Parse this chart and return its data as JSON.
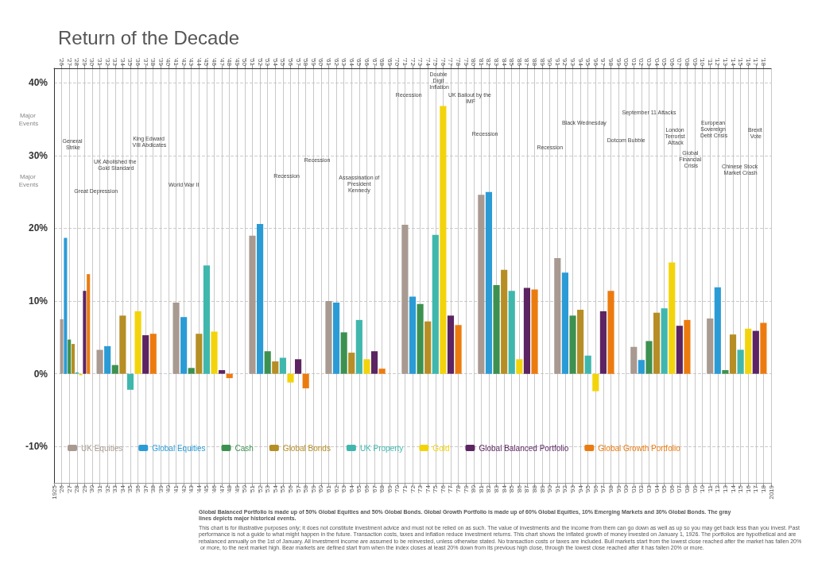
{
  "chart_data": {
    "type": "bar",
    "title": "Return of the Decade",
    "xlim": [
      1925,
      2019
    ],
    "ylim": [
      -15,
      42
    ],
    "yticks": [
      {
        "value": -10,
        "label": "-10%"
      },
      {
        "value": 0,
        "label": "0%"
      },
      {
        "value": 10,
        "label": "10%"
      },
      {
        "value": 20,
        "label": "20%"
      },
      {
        "value": 30,
        "label": "30%"
      },
      {
        "value": 40,
        "label": "40%"
      }
    ],
    "xticks": [
      {
        "value": 1925,
        "label": "1925"
      },
      {
        "value": 1926,
        "label": "'26"
      },
      {
        "value": 1927,
        "label": "'27"
      },
      {
        "value": 1928,
        "label": "'28"
      },
      {
        "value": 1929,
        "label": "'29"
      },
      {
        "value": 1930,
        "label": "'30"
      },
      {
        "value": 1931,
        "label": "'31"
      },
      {
        "value": 1932,
        "label": "'32"
      },
      {
        "value": 1933,
        "label": "'33"
      },
      {
        "value": 1934,
        "label": "'34"
      },
      {
        "value": 1935,
        "label": "'35"
      },
      {
        "value": 1936,
        "label": "'36"
      },
      {
        "value": 1937,
        "label": "'37"
      },
      {
        "value": 1938,
        "label": "'38"
      },
      {
        "value": 1939,
        "label": "'39"
      },
      {
        "value": 1940,
        "label": "'40"
      },
      {
        "value": 1941,
        "label": "'41"
      },
      {
        "value": 1942,
        "label": "'42"
      },
      {
        "value": 1943,
        "label": "'43"
      },
      {
        "value": 1944,
        "label": "'44"
      },
      {
        "value": 1945,
        "label": "'45"
      },
      {
        "value": 1946,
        "label": "'46"
      },
      {
        "value": 1947,
        "label": "'47"
      },
      {
        "value": 1948,
        "label": "'48"
      },
      {
        "value": 1949,
        "label": "'49"
      },
      {
        "value": 1950,
        "label": "'50"
      },
      {
        "value": 1951,
        "label": "'51"
      },
      {
        "value": 1952,
        "label": "'52"
      },
      {
        "value": 1953,
        "label": "'53"
      },
      {
        "value": 1954,
        "label": "'54"
      },
      {
        "value": 1955,
        "label": "'55"
      },
      {
        "value": 1956,
        "label": "'56"
      },
      {
        "value": 1957,
        "label": "'57"
      },
      {
        "value": 1958,
        "label": "'58"
      },
      {
        "value": 1959,
        "label": "'59"
      },
      {
        "value": 1960,
        "label": "'60"
      },
      {
        "value": 1961,
        "label": "'61"
      },
      {
        "value": 1962,
        "label": "'62"
      },
      {
        "value": 1963,
        "label": "'63"
      },
      {
        "value": 1964,
        "label": "'64"
      },
      {
        "value": 1965,
        "label": "'65"
      },
      {
        "value": 1966,
        "label": "'66"
      },
      {
        "value": 1967,
        "label": "'67"
      },
      {
        "value": 1968,
        "label": "'68"
      },
      {
        "value": 1969,
        "label": "'69"
      },
      {
        "value": 1970,
        "label": "'70"
      },
      {
        "value": 1971,
        "label": "'71"
      },
      {
        "value": 1972,
        "label": "'72"
      },
      {
        "value": 1973,
        "label": "'73"
      },
      {
        "value": 1974,
        "label": "'74"
      },
      {
        "value": 1975,
        "label": "'75"
      },
      {
        "value": 1976,
        "label": "'76"
      },
      {
        "value": 1977,
        "label": "'77"
      },
      {
        "value": 1978,
        "label": "'78"
      },
      {
        "value": 1979,
        "label": "'79"
      },
      {
        "value": 1980,
        "label": "'80"
      },
      {
        "value": 1981,
        "label": "'81"
      },
      {
        "value": 1982,
        "label": "'82"
      },
      {
        "value": 1983,
        "label": "'83"
      },
      {
        "value": 1984,
        "label": "'84"
      },
      {
        "value": 1985,
        "label": "'85"
      },
      {
        "value": 1986,
        "label": "'86"
      },
      {
        "value": 1987,
        "label": "'87"
      },
      {
        "value": 1988,
        "label": "'88"
      },
      {
        "value": 1989,
        "label": "'89"
      },
      {
        "value": 1990,
        "label": "'90"
      },
      {
        "value": 1991,
        "label": "'91"
      },
      {
        "value": 1992,
        "label": "'92"
      },
      {
        "value": 1993,
        "label": "'93"
      },
      {
        "value": 1994,
        "label": "'94"
      },
      {
        "value": 1995,
        "label": "'95"
      },
      {
        "value": 1996,
        "label": "'96"
      },
      {
        "value": 1997,
        "label": "'97"
      },
      {
        "value": 1998,
        "label": "'98"
      },
      {
        "value": 1999,
        "label": "'99"
      },
      {
        "value": 2000,
        "label": "'00"
      },
      {
        "value": 2001,
        "label": "'01"
      },
      {
        "value": 2002,
        "label": "'02"
      },
      {
        "value": 2003,
        "label": "'03"
      },
      {
        "value": 2004,
        "label": "'04"
      },
      {
        "value": 2005,
        "label": "'05"
      },
      {
        "value": 2006,
        "label": "'06"
      },
      {
        "value": 2007,
        "label": "'07"
      },
      {
        "value": 2008,
        "label": "'08"
      },
      {
        "value": 2009,
        "label": "'09"
      },
      {
        "value": 2010,
        "label": "'10"
      },
      {
        "value": 2011,
        "label": "'11"
      },
      {
        "value": 2012,
        "label": "'12"
      },
      {
        "value": 2013,
        "label": "'13"
      },
      {
        "value": 2014,
        "label": "'14"
      },
      {
        "value": 2015,
        "label": "'15"
      },
      {
        "value": 2016,
        "label": "'16"
      },
      {
        "value": 2017,
        "label": "'17"
      },
      {
        "value": 2018,
        "label": "'18"
      },
      {
        "value": 2019,
        "label": "2019"
      }
    ],
    "x2lim": [
      1925,
      2019
    ],
    "x2ticks": [
      {
        "value": 1926,
        "label": "'26"
      },
      {
        "value": 1927,
        "label": "'27"
      },
      {
        "value": 1928,
        "label": "'28"
      },
      {
        "value": 1929,
        "label": "'29"
      },
      {
        "value": 1930,
        "label": "'30"
      },
      {
        "value": 1931,
        "label": "'31"
      },
      {
        "value": 1932,
        "label": "'32"
      },
      {
        "value": 1933,
        "label": "'33"
      },
      {
        "value": 1934,
        "label": "'34"
      },
      {
        "value": 1935,
        "label": "'35"
      },
      {
        "value": 1936,
        "label": "'36"
      },
      {
        "value": 1937,
        "label": "'37"
      },
      {
        "value": 1938,
        "label": "'38"
      },
      {
        "value": 1939,
        "label": "'39"
      },
      {
        "value": 1940,
        "label": "'40"
      },
      {
        "value": 1941,
        "label": "'41"
      },
      {
        "value": 1942,
        "label": "'42"
      },
      {
        "value": 1943,
        "label": "'43"
      },
      {
        "value": 1944,
        "label": "'44"
      },
      {
        "value": 1945,
        "label": "'45"
      },
      {
        "value": 1946,
        "label": "'46"
      },
      {
        "value": 1947,
        "label": "'47"
      },
      {
        "value": 1948,
        "label": "'48"
      },
      {
        "value": 1949,
        "label": "'49"
      },
      {
        "value": 1950,
        "label": "'50"
      },
      {
        "value": 1951,
        "label": "'51"
      },
      {
        "value": 1952,
        "label": "'52"
      },
      {
        "value": 1953,
        "label": "'53"
      },
      {
        "value": 1954,
        "label": "'54"
      },
      {
        "value": 1955,
        "label": "'55"
      },
      {
        "value": 1956,
        "label": "'56"
      },
      {
        "value": 1957,
        "label": "'57"
      },
      {
        "value": 1958,
        "label": "'58"
      },
      {
        "value": 1959,
        "label": "'59"
      },
      {
        "value": 1960,
        "label": "'60"
      },
      {
        "value": 1961,
        "label": "'61"
      },
      {
        "value": 1962,
        "label": "'62"
      },
      {
        "value": 1963,
        "label": "'63"
      },
      {
        "value": 1964,
        "label": "'64"
      },
      {
        "value": 1965,
        "label": "'65"
      },
      {
        "value": 1966,
        "label": "'66"
      },
      {
        "value": 1967,
        "label": "'67"
      },
      {
        "value": 1968,
        "label": "'68"
      },
      {
        "value": 1969,
        "label": "'69"
      },
      {
        "value": 1970,
        "label": "'70"
      },
      {
        "value": 1971,
        "label": "'71"
      },
      {
        "value": 1972,
        "label": "'72"
      },
      {
        "value": 1973,
        "label": "'73"
      },
      {
        "value": 1974,
        "label": "'74"
      },
      {
        "value": 1975,
        "label": "'75"
      },
      {
        "value": 1976,
        "label": "'76"
      },
      {
        "value": 1977,
        "label": "'77"
      },
      {
        "value": 1978,
        "label": "'78"
      },
      {
        "value": 1979,
        "label": "'79"
      },
      {
        "value": 1980,
        "label": "'80"
      },
      {
        "value": 1981,
        "label": "'81"
      },
      {
        "value": 1982,
        "label": "'82"
      },
      {
        "value": 1983,
        "label": "'83"
      },
      {
        "value": 1984,
        "label": "'84"
      },
      {
        "value": 1985,
        "label": "'85"
      },
      {
        "value": 1986,
        "label": "'86"
      },
      {
        "value": 1987,
        "label": "'87"
      },
      {
        "value": 1988,
        "label": "'88"
      },
      {
        "value": 1989,
        "label": "'89"
      },
      {
        "value": 1990,
        "label": "'90"
      },
      {
        "value": 1991,
        "label": "'91"
      },
      {
        "value": 1992,
        "label": "'92"
      },
      {
        "value": 1993,
        "label": "'93"
      },
      {
        "value": 1994,
        "label": "'94"
      },
      {
        "value": 1995,
        "label": "'95"
      },
      {
        "value": 1996,
        "label": "'96"
      },
      {
        "value": 1997,
        "label": "'97"
      },
      {
        "value": 1998,
        "label": "'98"
      },
      {
        "value": 1999,
        "label": "'99"
      },
      {
        "value": 2000,
        "label": "'00"
      },
      {
        "value": 2001,
        "label": "'01"
      },
      {
        "value": 2002,
        "label": "'02"
      },
      {
        "value": 2003,
        "label": "'03"
      },
      {
        "value": 2004,
        "label": "'04"
      },
      {
        "value": 2005,
        "label": "'05"
      },
      {
        "value": 2006,
        "label": "'06"
      },
      {
        "value": 2007,
        "label": "'07"
      },
      {
        "value": 2008,
        "label": "'08"
      },
      {
        "value": 2009,
        "label": "'09"
      },
      {
        "value": 2010,
        "label": "'10"
      },
      {
        "value": 2011,
        "label": "'11"
      },
      {
        "value": 2012,
        "label": "'12"
      },
      {
        "value": 2013,
        "label": "'13"
      },
      {
        "value": 2014,
        "label": "'14"
      },
      {
        "value": 2015,
        "label": "'15"
      },
      {
        "value": 2016,
        "label": "'16"
      },
      {
        "value": 2017,
        "label": "'17"
      },
      {
        "value": 2018,
        "label": "'18"
      }
    ],
    "grid": true,
    "legend": "bottom",
    "series": [
      {
        "name": "UK Equities",
        "color": "#a89a91",
        "x": [
          1926,
          1931,
          1941,
          1951,
          1961,
          1971,
          1981,
          1991,
          2001,
          2011
        ],
        "values": [
          7.5,
          3.3,
          9.8,
          19.0,
          10.0,
          20.5,
          24.6,
          15.9,
          3.7,
          7.6
        ]
      },
      {
        "name": "Global Equities",
        "color": "#2b9bd6",
        "x": [
          1926.5,
          1932,
          1942,
          1952,
          1962,
          1972,
          1982,
          1992,
          2002,
          2012
        ],
        "values": [
          18.7,
          3.8,
          7.8,
          20.6,
          9.8,
          10.6,
          25.0,
          13.9,
          1.9,
          11.9
        ]
      },
      {
        "name": "Cash",
        "color": "#3d9150",
        "x": [
          1927,
          1933,
          1943,
          1953,
          1963,
          1973,
          1983,
          1993,
          2003,
          2013
        ],
        "values": [
          4.7,
          1.2,
          0.8,
          3.1,
          5.7,
          9.6,
          12.2,
          8.0,
          4.5,
          0.5
        ]
      },
      {
        "name": "Global Bonds",
        "color": "#b68e25",
        "x": [
          1927.5,
          1934,
          1944,
          1954,
          1964,
          1974,
          1984,
          1994,
          2004,
          2014
        ],
        "values": [
          4.1,
          8.0,
          5.5,
          1.7,
          2.9,
          7.2,
          14.3,
          8.8,
          8.4,
          5.4
        ]
      },
      {
        "name": "UK Property",
        "color": "#40b7ad",
        "x": [
          1928,
          1935,
          1945,
          1955,
          1965,
          1975,
          1985,
          1995,
          2005,
          2015
        ],
        "values": [
          0.2,
          -2.2,
          14.9,
          2.2,
          7.4,
          19.1,
          11.4,
          2.5,
          9.0,
          3.3
        ]
      },
      {
        "name": "Gold",
        "color": "#f3d40c",
        "x": [
          1928.5,
          1936,
          1946,
          1956,
          1966,
          1976,
          1986,
          1996,
          2006,
          2016
        ],
        "values": [
          -0.2,
          8.6,
          5.8,
          -1.2,
          2.0,
          36.8,
          2.0,
          -2.4,
          15.3,
          6.2
        ]
      },
      {
        "name": "Global Balanced Portfolio",
        "color": "#5c2462",
        "x": [
          1929,
          1937,
          1947,
          1957,
          1967,
          1977,
          1987,
          1997,
          2007,
          2017
        ],
        "values": [
          11.4,
          5.3,
          0.5,
          2.0,
          3.1,
          8.0,
          11.8,
          8.6,
          6.6,
          5.9
        ]
      },
      {
        "name": "Global Growth Portfolio",
        "color": "#ec7b0f",
        "x": [
          1929.5,
          1938,
          1948,
          1958,
          1968,
          1978,
          1988,
          1998,
          2008,
          2018
        ],
        "values": [
          13.7,
          5.5,
          -0.6,
          -2.0,
          0.7,
          6.7,
          11.6,
          11.4,
          7.4,
          7.0
        ]
      }
    ],
    "annotations": [
      "General Strike",
      "Great Depression",
      "UK Abolished the Gold Standard",
      "King Edward VIII Abdicates",
      "World War II",
      "Recession",
      "Recession",
      "Assassination of President Kennedy",
      "Recession",
      "Double Digit Inflation",
      "UK Bailout by the IMF",
      "Recession",
      "Recession",
      "Black Wednesday",
      "September 11 Attacks",
      "Dotcom Bubble",
      "London Terrorist Attack",
      "Global Financial Crisis",
      "European Sovereign Debt Crisis",
      "Chinese Stock Market Crash",
      "Brexit Vote",
      "Major Events",
      "Major Events",
      "Global Balanced Portfolio is made up of 50% Global Equities and 50% Global Bonds. Global Growth Portfolio is made up of 60% Global Equities, 10% Emerging Markets and 30% Global Bonds. The gray lines depicts major historical events.",
      "This chart is for illustrative purposes only; it does not constitute investment advice and must not be relied on as such. The value of investments and the income from them can go down as well as up so you may get back less than you invest. Past performance is not a guide to what might happen in the future. Transaction costs, taxes and inflation reduce investment returns. This chart shows the inflated growth of money invested on January 1, 1926. The portfolios are hypothetical and are rebalanced annually on the 1st of January. All investment income are assumed to be reinvested, unless otherwise stated. No transaction costs or taxes are included. Bull markets start from the lowest close reached after the market has fallen 20% or more, to the next market high. Bear markets are defined start from when the index closes at least 20% down from its previous high close, through the lowest close reached after it has fallen 20% or more."
    ]
  }
}
